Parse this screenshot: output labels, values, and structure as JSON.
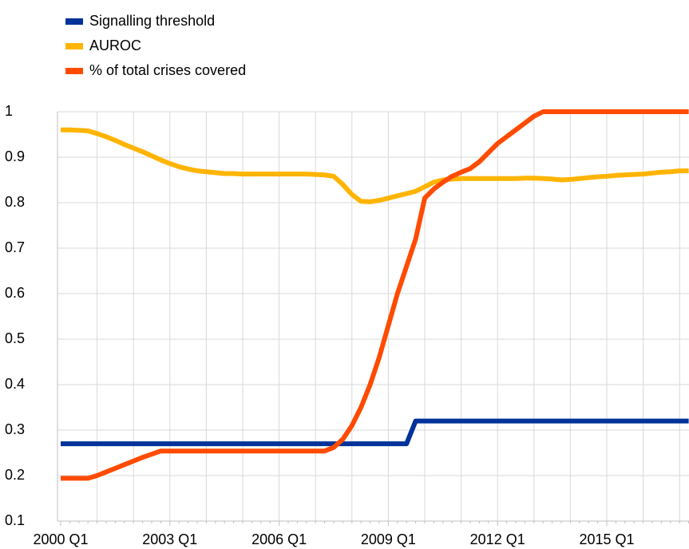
{
  "chart_data": {
    "type": "line",
    "categories": [
      "2000 Q1",
      null,
      null,
      null,
      null,
      null,
      null,
      null,
      null,
      null,
      null,
      null,
      "2003 Q1",
      null,
      null,
      null,
      null,
      null,
      null,
      null,
      null,
      null,
      null,
      null,
      "2006 Q1",
      null,
      null,
      null,
      null,
      null,
      null,
      null,
      null,
      null,
      null,
      null,
      "2009 Q1",
      null,
      null,
      null,
      null,
      null,
      null,
      null,
      null,
      null,
      null,
      null,
      "2012 Q1",
      null,
      null,
      null,
      null,
      null,
      null,
      null,
      null,
      null,
      null,
      null,
      "2015 Q1",
      null,
      null,
      null,
      null,
      null,
      null,
      null,
      null,
      null
    ],
    "series": [
      {
        "name": "Signalling threshold",
        "color": "#003299",
        "values": [
          0.27,
          0.27,
          0.27,
          0.27,
          0.27,
          0.27,
          0.27,
          0.27,
          0.27,
          0.27,
          0.27,
          0.27,
          0.27,
          0.27,
          0.27,
          0.27,
          0.27,
          0.27,
          0.27,
          0.27,
          0.27,
          0.27,
          0.27,
          0.27,
          0.27,
          0.27,
          0.27,
          0.27,
          0.27,
          0.27,
          0.27,
          0.27,
          0.27,
          0.27,
          0.27,
          0.27,
          0.27,
          0.27,
          0.27,
          0.32,
          0.32,
          0.32,
          0.32,
          0.32,
          0.32,
          0.32,
          0.32,
          0.32,
          0.32,
          0.32,
          0.32,
          0.32,
          0.32,
          0.32,
          0.32,
          0.32,
          0.32,
          0.32,
          0.32,
          0.32,
          0.32,
          0.32,
          0.32,
          0.32,
          0.32,
          0.32,
          0.32,
          0.32,
          0.32,
          0.32
        ]
      },
      {
        "name": "AUROC",
        "color": "#ffb400",
        "values": [
          0.96,
          0.96,
          0.959,
          0.958,
          0.952,
          0.945,
          0.937,
          0.928,
          0.92,
          0.912,
          0.903,
          0.894,
          0.886,
          0.879,
          0.874,
          0.87,
          0.868,
          0.866,
          0.864,
          0.864,
          0.863,
          0.863,
          0.863,
          0.863,
          0.863,
          0.863,
          0.863,
          0.863,
          0.862,
          0.861,
          0.858,
          0.84,
          0.818,
          0.803,
          0.802,
          0.805,
          0.81,
          0.815,
          0.82,
          0.825,
          0.835,
          0.845,
          0.85,
          0.852,
          0.853,
          0.853,
          0.853,
          0.853,
          0.853,
          0.853,
          0.853,
          0.854,
          0.854,
          0.853,
          0.852,
          0.85,
          0.851,
          0.853,
          0.855,
          0.857,
          0.858,
          0.86,
          0.861,
          0.862,
          0.863,
          0.865,
          0.867,
          0.868,
          0.87,
          0.87
        ]
      },
      {
        "name": "% of total crises covered",
        "color": "#ff4b00",
        "values": [
          0.194,
          0.194,
          0.194,
          0.194,
          0.2,
          0.208,
          0.216,
          0.224,
          0.232,
          0.24,
          0.247,
          0.254,
          0.254,
          0.254,
          0.254,
          0.254,
          0.254,
          0.254,
          0.254,
          0.254,
          0.254,
          0.254,
          0.254,
          0.254,
          0.254,
          0.254,
          0.254,
          0.254,
          0.254,
          0.254,
          0.262,
          0.28,
          0.31,
          0.35,
          0.4,
          0.46,
          0.53,
          0.6,
          0.66,
          0.72,
          0.81,
          0.83,
          0.845,
          0.858,
          0.867,
          0.875,
          0.89,
          0.91,
          0.93,
          0.945,
          0.96,
          0.975,
          0.99,
          1,
          1,
          1,
          1,
          1,
          1,
          1,
          1,
          1,
          1,
          1,
          1,
          1,
          1,
          1,
          1,
          1
        ]
      }
    ],
    "ylim": [
      0.1,
      1
    ],
    "yticks": [
      0.1,
      0.2,
      0.3,
      0.4,
      0.5,
      0.6,
      0.7,
      0.8,
      0.9,
      1
    ],
    "grid": true
  }
}
